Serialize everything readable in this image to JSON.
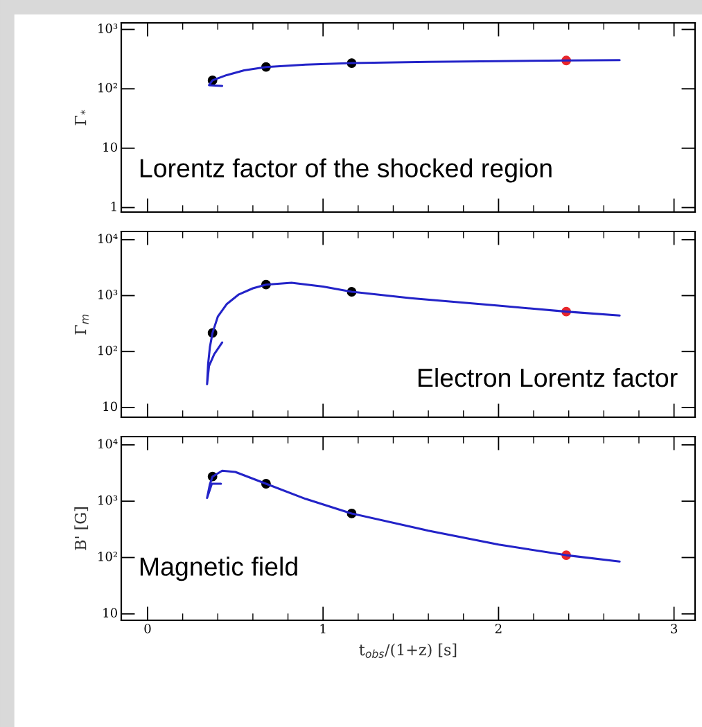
{
  "chart_data": [
    {
      "type": "line",
      "ylabel": "Γ$_{*}$",
      "log": "y",
      "xlim": [
        -0.15,
        3.12
      ],
      "xticks": [
        0,
        1,
        2,
        3
      ],
      "ylim": [
        0.84,
        1290
      ],
      "yticks": [
        {
          "value": 1,
          "label": "1"
        },
        {
          "value": 10,
          "label": "10"
        },
        {
          "value": 100,
          "label": "10²"
        },
        {
          "value": 1000,
          "label": "10³"
        }
      ],
      "tick_labels": "y",
      "annotations": [
        "Lorentz factor of the shocked region"
      ],
      "series": [
        {
          "color": "#2323c8",
          "x": [
            0.425,
            0.35,
            0.37,
            0.45,
            0.55,
            0.675,
            0.9,
            1.163,
            1.6,
            2.0,
            2.386,
            2.69
          ],
          "values": [
            112,
            115,
            139,
            170,
            205,
            233,
            255,
            271,
            285,
            293,
            300,
            305
          ]
        },
        {
          "type": "scatter",
          "x": [
            0.37,
            0.675,
            1.163,
            2.386
          ],
          "values": [
            139,
            233,
            271,
            300
          ],
          "colors": [
            "#000000",
            "#000000",
            "#000000",
            "#e8262a"
          ]
        }
      ]
    },
    {
      "type": "line",
      "ylabel": "Γ$_{m}$",
      "log": "y",
      "xlim": [
        -0.15,
        3.12
      ],
      "xticks": [
        0,
        1,
        2,
        3
      ],
      "ylim": [
        6.7,
        14000
      ],
      "yticks": [
        {
          "value": 10,
          "label": "10"
        },
        {
          "value": 100,
          "label": "10²"
        },
        {
          "value": 1000,
          "label": "10³"
        },
        {
          "value": 10000,
          "label": "10⁴"
        }
      ],
      "tick_labels": "y",
      "annotations": [
        "Electron Lorentz factor"
      ],
      "series": [
        {
          "color": "#2323c8",
          "x": [
            0.425,
            0.38,
            0.35,
            0.339,
            0.345,
            0.355,
            0.37,
            0.4,
            0.45,
            0.52,
            0.6,
            0.675,
            0.82,
            1.0,
            1.163,
            1.5,
            2.0,
            2.386,
            2.69
          ],
          "values": [
            145,
            90,
            55,
            26,
            60,
            120,
            215,
            420,
            700,
            1050,
            1350,
            1570,
            1700,
            1450,
            1170,
            900,
            660,
            517,
            440
          ]
        },
        {
          "type": "scatter",
          "x": [
            0.37,
            0.675,
            1.163,
            2.386
          ],
          "values": [
            215,
            1570,
            1170,
            517
          ],
          "colors": [
            "#000000",
            "#000000",
            "#000000",
            "#e8262a"
          ]
        }
      ]
    },
    {
      "type": "line",
      "ylabel": "B' [G]",
      "xlabel": "t$_{obs}$/(1+z) [s]",
      "log": "y",
      "xlim": [
        -0.15,
        3.12
      ],
      "xticks": [
        0,
        1,
        2,
        3
      ],
      "ylim": [
        7.7,
        14000
      ],
      "yticks": [
        {
          "value": 10,
          "label": "10"
        },
        {
          "value": 100,
          "label": "10²"
        },
        {
          "value": 1000,
          "label": "10³"
        },
        {
          "value": 10000,
          "label": "10⁴"
        }
      ],
      "annotations": [
        "Magnetic field"
      ],
      "series": [
        {
          "color": "#2323c8",
          "x": [
            0.418,
            0.366,
            0.339,
            0.355,
            0.37,
            0.425,
            0.5,
            0.675,
            0.9,
            1.163,
            1.6,
            2.0,
            2.386,
            2.69
          ],
          "values": [
            2040,
            2040,
            1140,
            2000,
            2730,
            3470,
            3300,
            2040,
            1100,
            605,
            300,
            170,
            110,
            85
          ]
        },
        {
          "type": "scatter",
          "x": [
            0.37,
            0.675,
            1.163,
            2.386
          ],
          "values": [
            2730,
            2040,
            605,
            110
          ],
          "colors": [
            "#000000",
            "#000000",
            "#000000",
            "#e8262a"
          ]
        }
      ]
    }
  ]
}
